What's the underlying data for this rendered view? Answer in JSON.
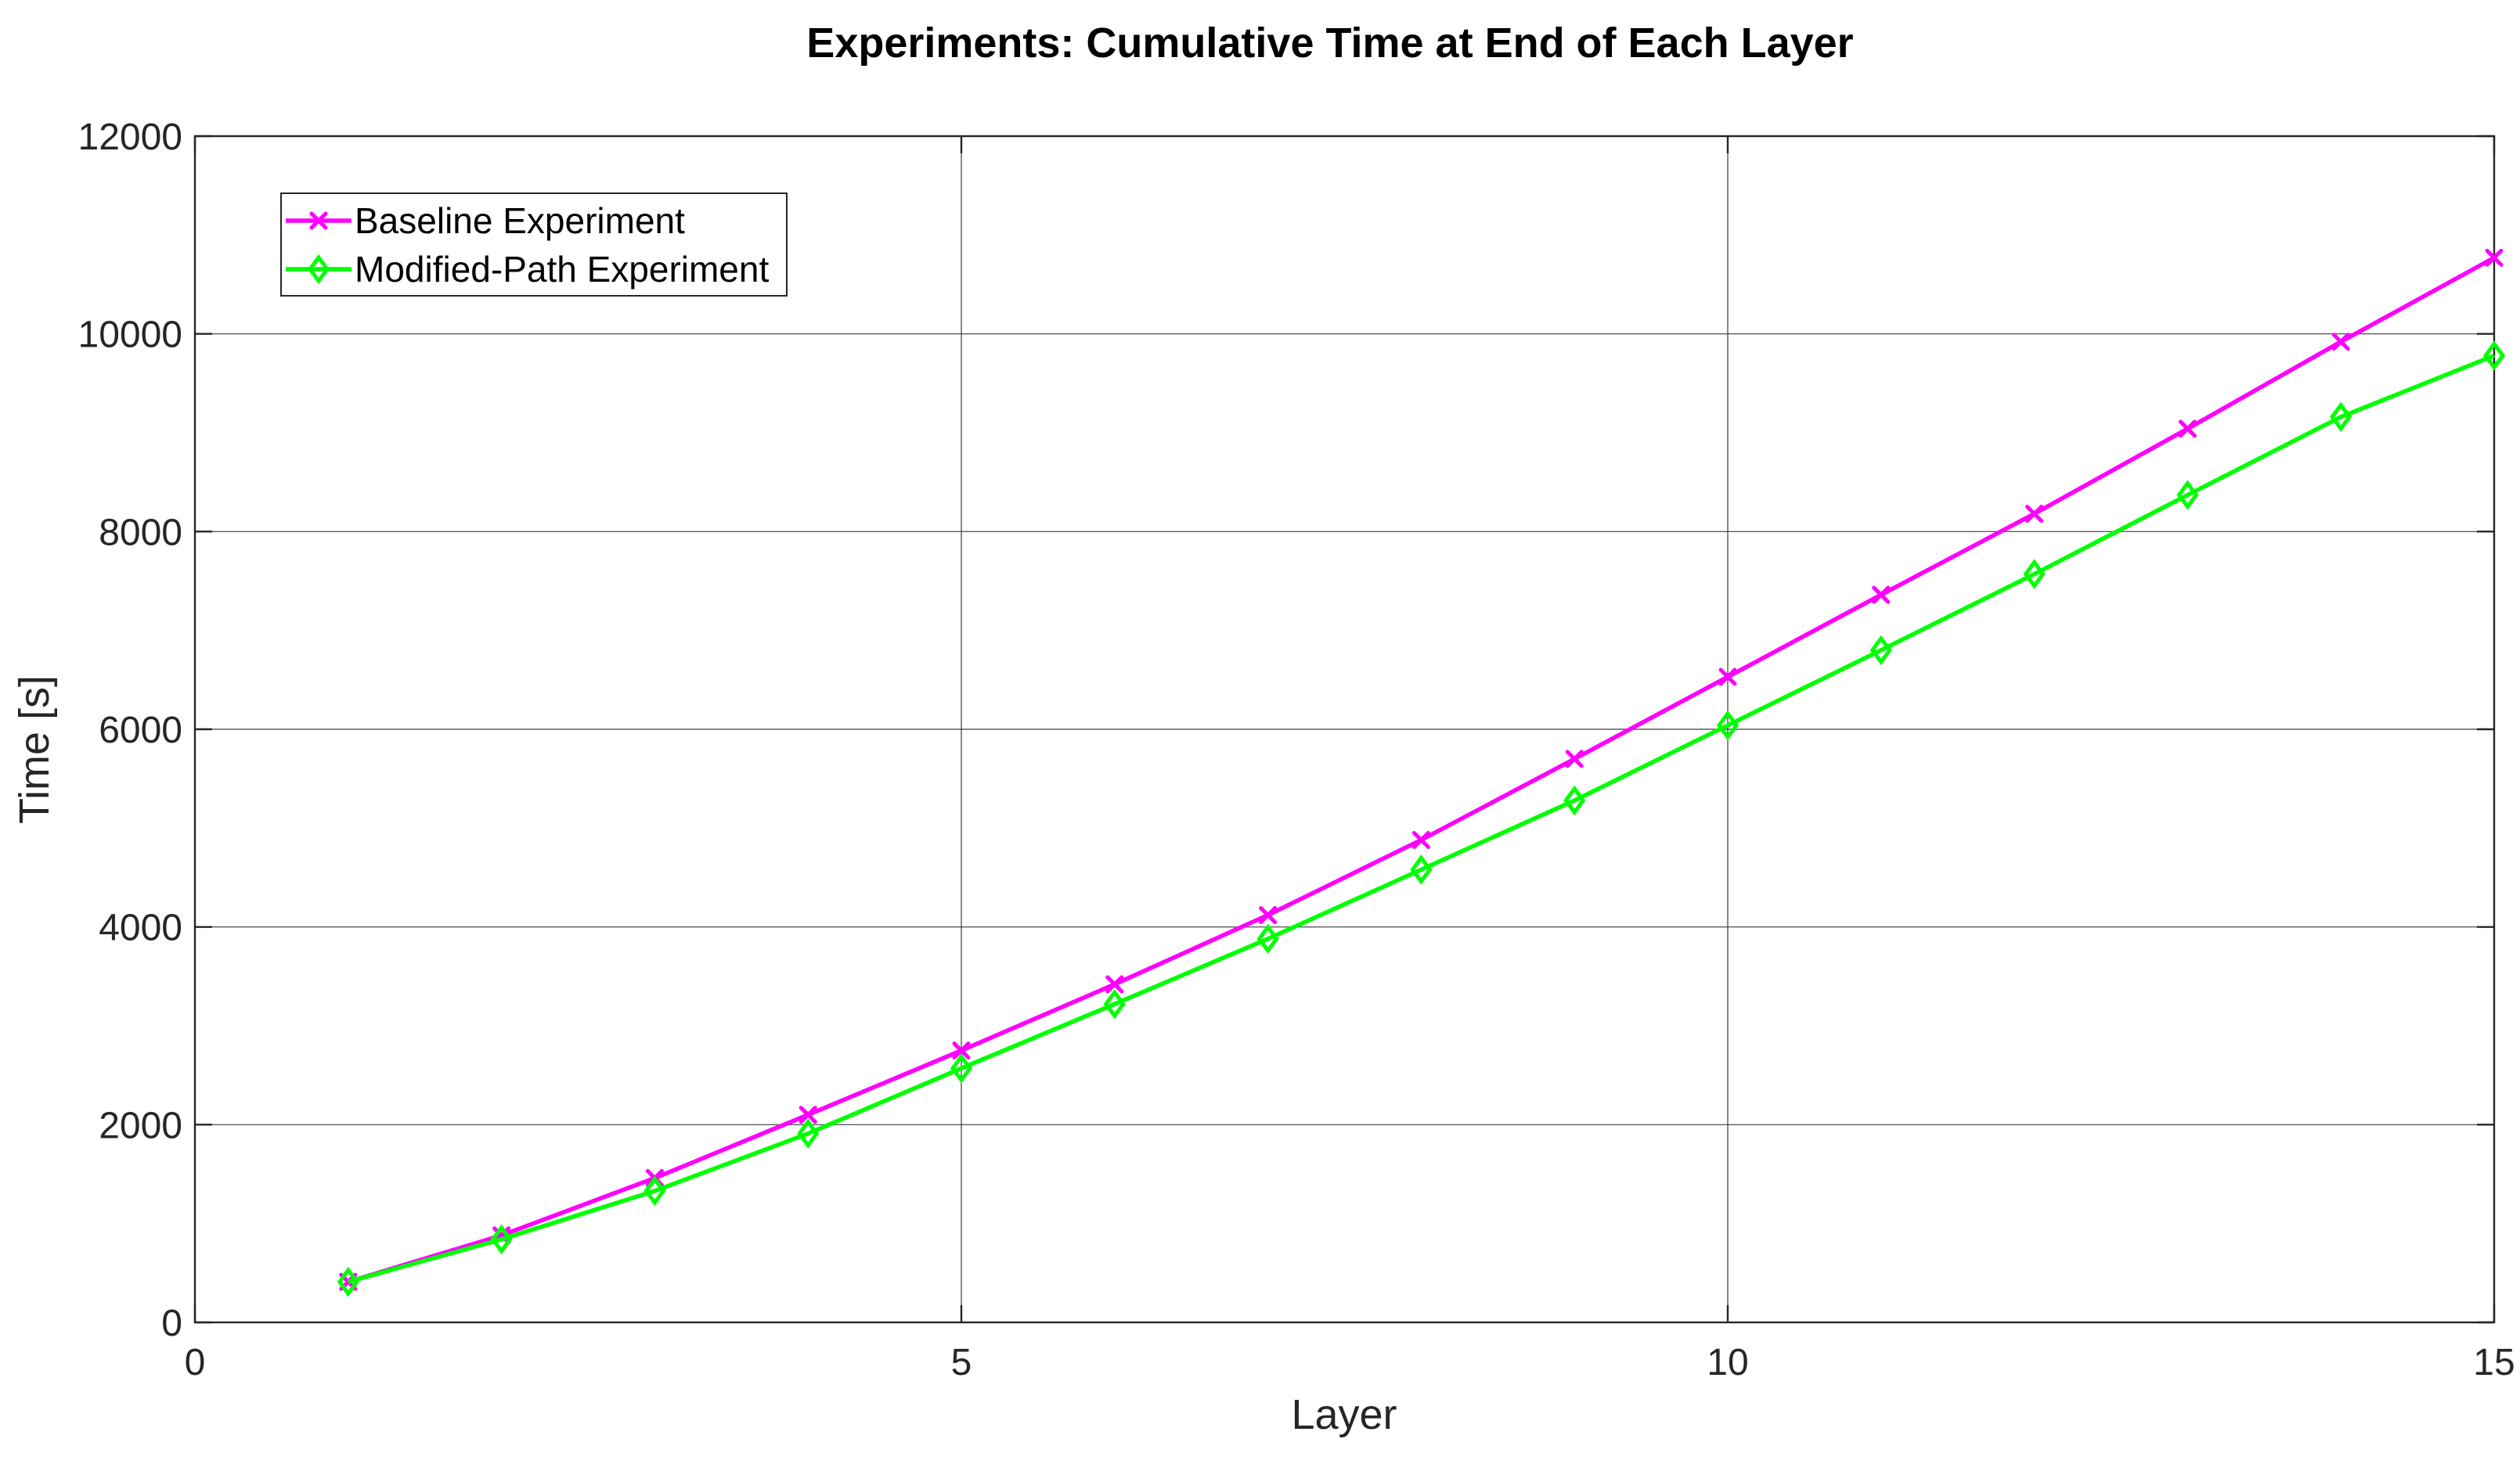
{
  "chart_data": {
    "type": "line",
    "title": "Experiments: Cumulative Time at End of Each Layer",
    "xlabel": "Layer",
    "ylabel": "Time [s]",
    "xlim": [
      0,
      15
    ],
    "ylim": [
      0,
      12000
    ],
    "xticks": [
      0,
      5,
      10,
      15
    ],
    "yticks": [
      0,
      2000,
      4000,
      6000,
      8000,
      10000,
      12000
    ],
    "xtick_labels": [
      "0",
      "5",
      "10",
      "15"
    ],
    "ytick_labels": [
      "0",
      "2000",
      "4000",
      "6000",
      "8000",
      "10000",
      "12000"
    ],
    "grid": true,
    "legend_position": "top-left",
    "x": [
      1,
      2,
      3,
      4,
      5,
      6,
      7,
      8,
      9,
      10,
      11,
      12,
      13,
      14,
      15
    ],
    "series": [
      {
        "name": "Baseline Experiment",
        "color": "#ff00ff",
        "marker": "x",
        "values": [
          410,
          880,
          1460,
          2100,
          2750,
          3420,
          4120,
          4880,
          5700,
          6530,
          7360,
          8180,
          9040,
          9920,
          10770
        ]
      },
      {
        "name": "Modified-Path Experiment",
        "color": "#00ff00",
        "marker": "diamond",
        "values": [
          410,
          840,
          1330,
          1910,
          2570,
          3220,
          3880,
          4580,
          5280,
          6040,
          6800,
          7570,
          8370,
          9160,
          9780
        ]
      }
    ]
  }
}
